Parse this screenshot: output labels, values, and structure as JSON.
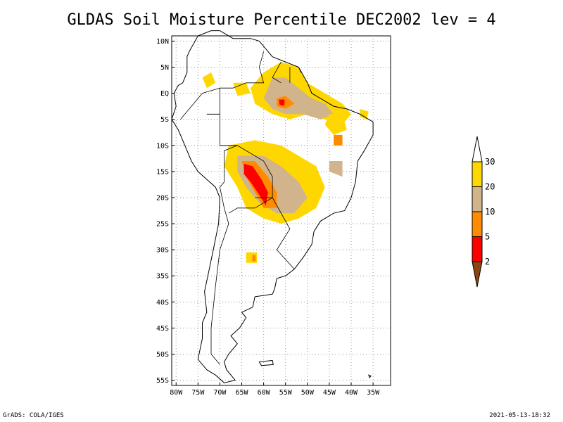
{
  "title": "GLDAS Soil Moisture Percentile DEC2002 lev = 4",
  "map": {
    "lat_labels": [
      "10N",
      "5N",
      "EQ",
      "5S",
      "10S",
      "15S",
      "20S",
      "25S",
      "30S",
      "35S",
      "40S",
      "45S",
      "50S",
      "55S"
    ],
    "lon_labels": [
      "80W",
      "75W",
      "70W",
      "65W",
      "60W",
      "55W",
      "50W",
      "45W",
      "40W",
      "35W"
    ],
    "lon_range": [
      -81,
      -31
    ],
    "lat_range": [
      -56,
      11
    ],
    "grid": "dotted"
  },
  "colorbar": {
    "labels": [
      "30",
      "20",
      "10",
      "5",
      "2"
    ],
    "colors": {
      "above_30": "#ffffff",
      "20_30": "#ffd700",
      "10_20": "#d2b48c",
      "5_10": "#ff8c00",
      "2_5": "#ff0000",
      "below_2": "#8b4513"
    }
  },
  "footer": {
    "left": "GrADS: COLA/IGES",
    "right": "2021-05-13-18:32"
  }
}
